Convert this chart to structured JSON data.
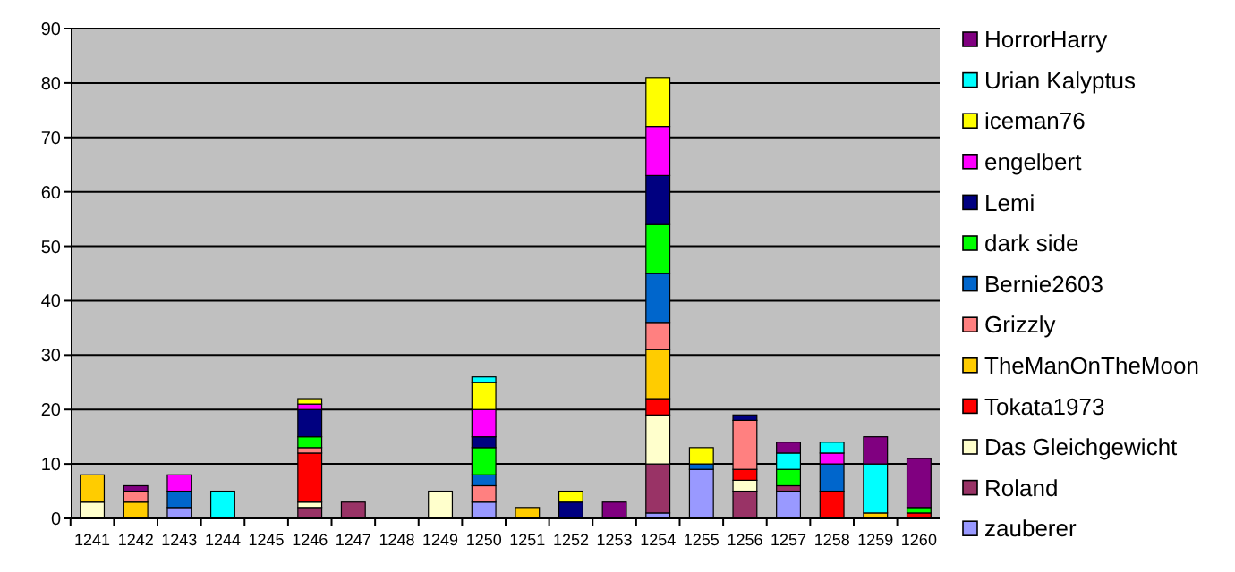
{
  "chart_data": {
    "type": "bar",
    "stacked": true,
    "categories": [
      "1241",
      "1242",
      "1243",
      "1244",
      "1245",
      "1246",
      "1247",
      "1248",
      "1249",
      "1250",
      "1251",
      "1252",
      "1253",
      "1254",
      "1255",
      "1256",
      "1257",
      "1258",
      "1259",
      "1260"
    ],
    "series": [
      {
        "name": "zauberer",
        "color": "#9999ff",
        "values": [
          null,
          null,
          2,
          null,
          null,
          null,
          null,
          null,
          null,
          3,
          null,
          null,
          null,
          1,
          9,
          null,
          5,
          null,
          null,
          null
        ]
      },
      {
        "name": "Roland",
        "color": "#993366",
        "values": [
          null,
          null,
          null,
          null,
          null,
          2,
          3,
          null,
          null,
          null,
          null,
          null,
          null,
          9,
          null,
          5,
          1,
          null,
          null,
          null
        ]
      },
      {
        "name": "Das Gleichgewicht",
        "color": "#ffffcc",
        "values": [
          3,
          null,
          null,
          null,
          null,
          1,
          null,
          null,
          5,
          null,
          null,
          null,
          null,
          9,
          null,
          2,
          null,
          null,
          null,
          null
        ]
      },
      {
        "name": "Tokata1973",
        "color": "#ff0000",
        "values": [
          null,
          null,
          null,
          null,
          null,
          9,
          null,
          null,
          null,
          null,
          null,
          null,
          null,
          3,
          null,
          2,
          null,
          5,
          null,
          1
        ]
      },
      {
        "name": "TheManOnTheMoon",
        "color": "#ffcc00",
        "values": [
          5,
          3,
          null,
          null,
          null,
          null,
          null,
          null,
          null,
          null,
          2,
          null,
          null,
          9,
          null,
          null,
          null,
          null,
          1,
          null
        ]
      },
      {
        "name": "Grizzly",
        "color": "#ff8080",
        "values": [
          null,
          2,
          null,
          null,
          null,
          1,
          null,
          null,
          null,
          3,
          null,
          null,
          null,
          5,
          null,
          9,
          null,
          null,
          null,
          null
        ]
      },
      {
        "name": "Bernie2603",
        "color": "#0066cc",
        "values": [
          null,
          null,
          3,
          null,
          null,
          null,
          null,
          null,
          null,
          2,
          null,
          null,
          null,
          9,
          1,
          null,
          null,
          5,
          null,
          null
        ]
      },
      {
        "name": "dark side",
        "color": "#00ff00",
        "values": [
          null,
          null,
          null,
          null,
          null,
          2,
          null,
          null,
          null,
          5,
          null,
          null,
          null,
          9,
          null,
          null,
          3,
          null,
          null,
          1
        ]
      },
      {
        "name": "Lemi",
        "color": "#000080",
        "values": [
          null,
          null,
          null,
          null,
          null,
          5,
          null,
          null,
          null,
          2,
          null,
          3,
          null,
          9,
          null,
          1,
          null,
          null,
          null,
          null
        ]
      },
      {
        "name": "engelbert",
        "color": "#ff00ff",
        "values": [
          null,
          null,
          3,
          null,
          null,
          1,
          null,
          null,
          null,
          5,
          null,
          null,
          null,
          9,
          null,
          null,
          null,
          2,
          null,
          null
        ]
      },
      {
        "name": "iceman76",
        "color": "#ffff00",
        "values": [
          null,
          null,
          null,
          null,
          null,
          1,
          null,
          null,
          null,
          5,
          null,
          2,
          null,
          9,
          3,
          null,
          null,
          null,
          null,
          null
        ]
      },
      {
        "name": "Urian Kalyptus",
        "color": "#00ffff",
        "values": [
          null,
          null,
          null,
          5,
          null,
          null,
          null,
          null,
          null,
          1,
          null,
          null,
          null,
          null,
          null,
          null,
          3,
          2,
          9,
          null
        ]
      },
      {
        "name": "HorrorHarry",
        "color": "#800080",
        "values": [
          null,
          1,
          null,
          null,
          null,
          null,
          null,
          null,
          null,
          null,
          null,
          null,
          3,
          null,
          null,
          null,
          2,
          null,
          5,
          9
        ]
      }
    ],
    "ylim": [
      0,
      90
    ],
    "yticks": [
      0,
      10,
      20,
      30,
      40,
      50,
      60,
      70,
      80,
      90
    ],
    "grid": "y",
    "legend": "right"
  }
}
